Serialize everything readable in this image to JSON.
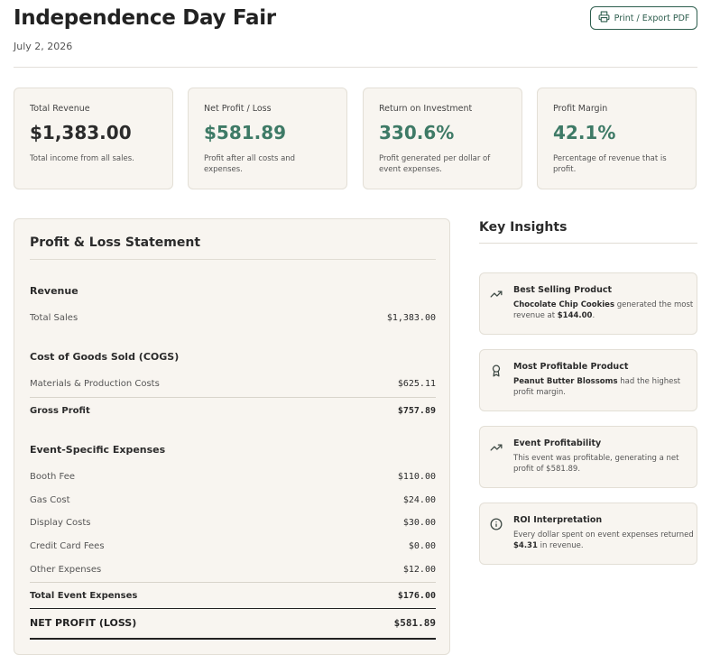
{
  "header": {
    "title": "Independence Day Fair",
    "date": "July 2, 2026",
    "export_label": "Print / Export PDF"
  },
  "summary_cards": [
    {
      "label": "Total Revenue",
      "value": "$1,383.00",
      "desc": "Total income from all sales."
    },
    {
      "label": "Net Profit / Loss",
      "value": "$581.89",
      "desc": "Profit after all costs and expenses."
    },
    {
      "label": "Return on Investment",
      "value": "330.6%",
      "desc": "Profit generated per dollar of event expenses."
    },
    {
      "label": "Profit Margin",
      "value": "42.1%",
      "desc": "Percentage of revenue that is profit."
    }
  ],
  "pl": {
    "title": "Profit & Loss Statement",
    "revenue": {
      "heading": "Revenue",
      "total_sales_label": "Total Sales",
      "total_sales": "$1,383.00"
    },
    "cogs": {
      "heading": "Cost of Goods Sold (COGS)",
      "materials_label": "Materials & Production Costs",
      "materials": "$625.11",
      "gross_profit_label": "Gross Profit",
      "gross_profit": "$757.89"
    },
    "expenses": {
      "heading": "Event-Specific Expenses",
      "items": [
        {
          "label": "Booth Fee",
          "amount": "$110.00"
        },
        {
          "label": "Gas Cost",
          "amount": "$24.00"
        },
        {
          "label": "Display Costs",
          "amount": "$30.00"
        },
        {
          "label": "Credit Card Fees",
          "amount": "$0.00"
        },
        {
          "label": "Other Expenses",
          "amount": "$12.00"
        }
      ],
      "total_label": "Total Event Expenses",
      "total": "$176.00"
    },
    "net_label": "NET PROFIT (LOSS)",
    "net": "$581.89"
  },
  "insights": {
    "title": "Key Insights",
    "cards": [
      {
        "icon": "trending-up-icon",
        "heading": "Best Selling Product",
        "strong": "Chocolate Chip Cookies",
        "text": " generated the most revenue at ",
        "strong2": "$144.00",
        "text2": "."
      },
      {
        "icon": "award-icon",
        "heading": "Most Profitable Product",
        "strong": "Peanut Butter Blossoms",
        "text": " had the highest profit margin.",
        "strong2": "",
        "text2": ""
      },
      {
        "icon": "trending-up-icon",
        "heading": "Event Profitability",
        "strong": "",
        "text": "This event was profitable, generating a net profit of $581.89.",
        "strong2": "",
        "text2": ""
      },
      {
        "icon": "info-icon",
        "heading": "ROI Interpretation",
        "strong": "",
        "text": "Every dollar spent on event expenses returned ",
        "strong2": "$4.31",
        "text2": " in revenue."
      }
    ]
  },
  "colors": {
    "accent": "#3e7a66",
    "button_border": "#2e5e4e",
    "card_bg": "#f8f5f0"
  }
}
